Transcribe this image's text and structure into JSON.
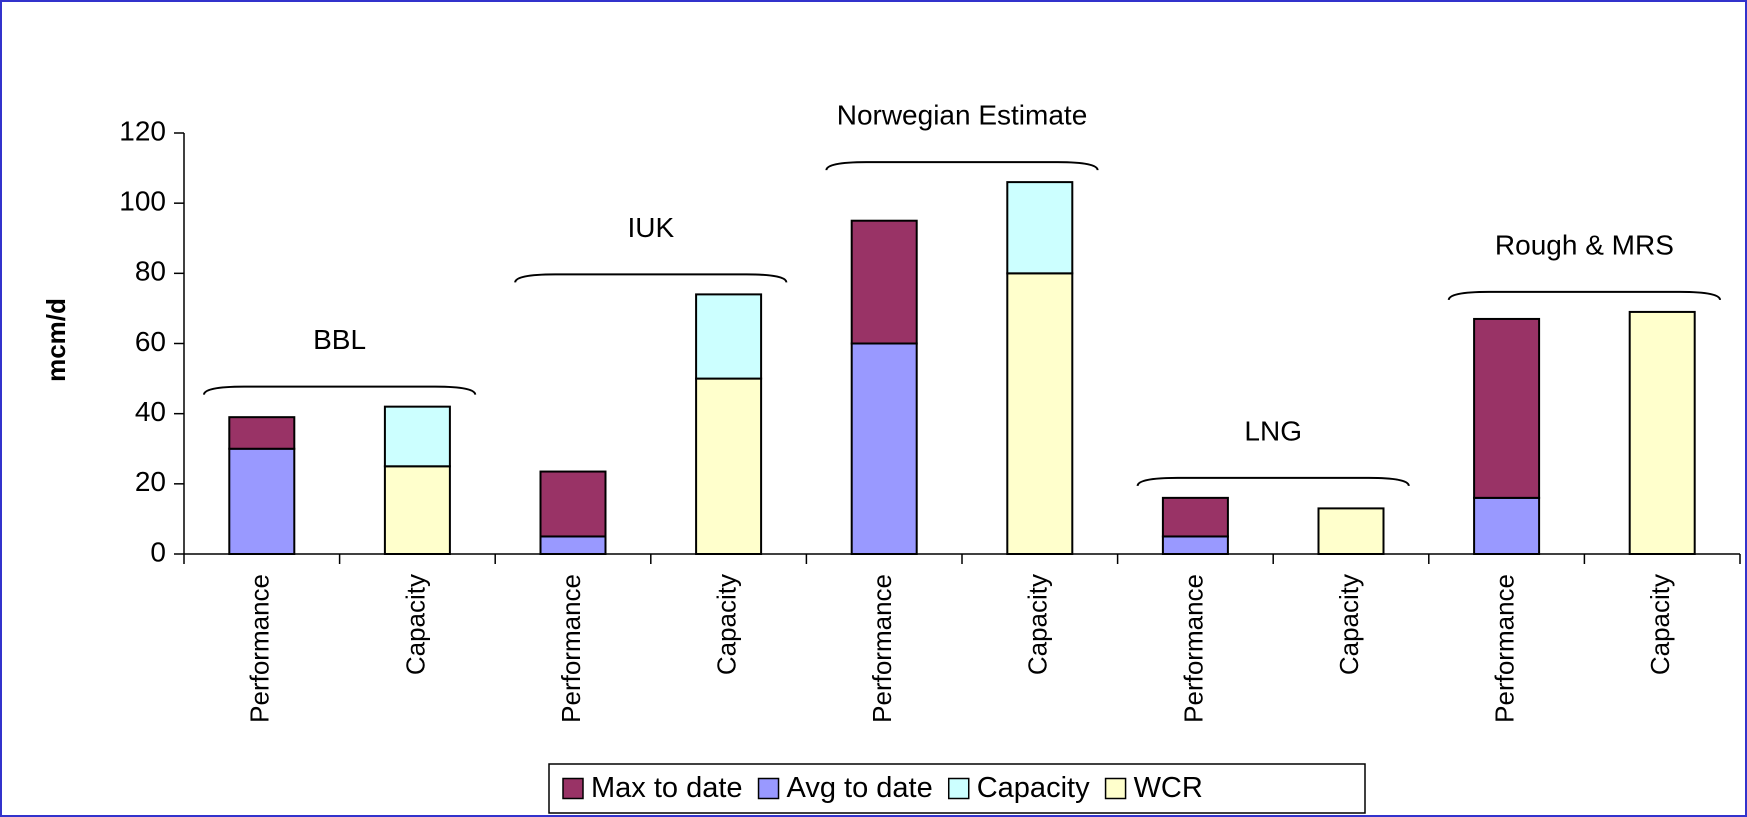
{
  "chart_data": {
    "type": "stacked_bar",
    "y_label": "mcm/d",
    "categories": [
      "Performance",
      "Capacity",
      "Performance",
      "Capacity",
      "Performance",
      "Capacity",
      "Performance",
      "Capacity",
      "Performance",
      "Capacity"
    ],
    "groups": [
      "BBL",
      "IUK",
      "Norwegian Estimate",
      "LNG",
      "Rough & MRS"
    ],
    "series": [
      {
        "name": "Avg to date",
        "color": "#9999ff",
        "values": [
          30,
          null,
          5,
          null,
          60,
          null,
          5,
          null,
          16,
          null
        ]
      },
      {
        "name": "Max to date",
        "color": "#993366",
        "values": [
          9,
          null,
          18.5,
          null,
          35,
          null,
          11,
          null,
          51,
          null
        ]
      },
      {
        "name": "WCR",
        "color": "#ffffcc",
        "values": [
          null,
          25,
          null,
          50,
          null,
          80,
          null,
          13,
          null,
          69
        ]
      },
      {
        "name": "Capacity",
        "color": "#ccffff",
        "values": [
          null,
          17,
          null,
          24,
          null,
          26,
          null,
          null,
          null,
          null
        ]
      }
    ],
    "legend_order": [
      "Max to date",
      "Avg to date",
      "Capacity",
      "WCR"
    ],
    "ylim": [
      0,
      120
    ],
    "yticks": [
      0,
      20,
      40,
      60,
      80,
      100,
      120
    ],
    "legend": "bottom"
  }
}
